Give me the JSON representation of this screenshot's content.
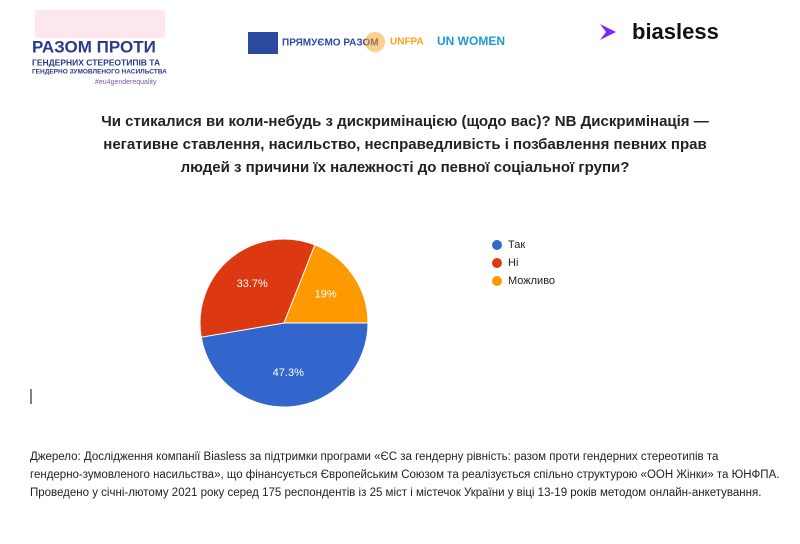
{
  "header": {
    "campaign_title": "РАЗОМ ПРОТИ",
    "campaign_line_1": "ГЕНДЕРНИХ СТЕРЕОТИПІВ ТА",
    "campaign_line_2": "ГЕНДЕРНО ЗУМОВЛЕНОГО НАСИЛЬСТВА",
    "hashtag": "#eu4genderequality",
    "eu_logo": "ПРЯМУЄМО РАЗОМ",
    "unfpa_logo": "UNFPA",
    "unwomen_logo": "UN WOMEN",
    "biasless_logo": "biasless"
  },
  "chart_data": {
    "type": "pie",
    "title": "Чи стикалися ви коли-небудь з дискримінацією (щодо вас)? NB Дискримінація — негативне ставлення, насильство, несправедливість і позбавлення певних прав людей з причини їх належності до певної соціальної групи?",
    "categories": [
      "Так",
      "Ні",
      "Можливо"
    ],
    "values": [
      47.3,
      33.7,
      19
    ],
    "value_labels": [
      "47.3%",
      "33.7%",
      "19%"
    ],
    "colors": [
      "#3366cc",
      "#dc3912",
      "#ff9900"
    ],
    "legend": "right"
  },
  "source_note": [
    "Джерело: Дослідження компанії Biasless за підтримки програми «ЄС за гендерну рівність: разом проти гендерних стереотипів та",
    "гендерно-зумовленого насильства», що фінансується Європейським Союзом та реалізується спільно структурою «ООН Жінки» та ЮНФПА.",
    "Проведено у січні-лютому 2021 року серед 175 респондентів  із 25 міст і містечок України у віці 13-19 років методом онлайн-анкетування."
  ]
}
